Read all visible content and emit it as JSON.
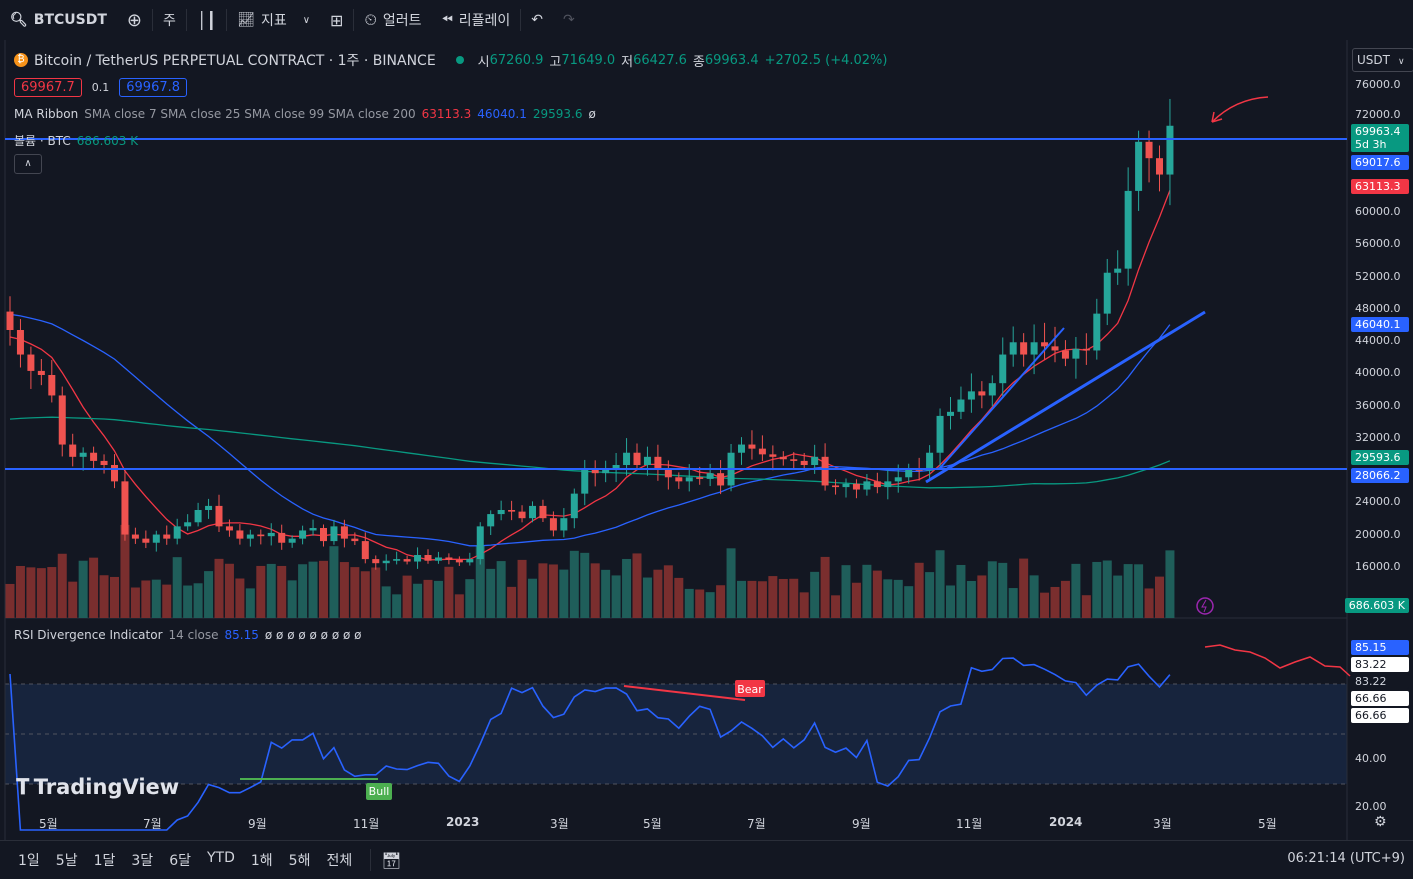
{
  "toolbar": {
    "symbol": "BTCUSDT",
    "interval": "주",
    "indicators": "지표",
    "alerts": "얼러트",
    "replay": "리플레이"
  },
  "header": {
    "title": "Bitcoin / TetherUS PERPETUAL CONTRACT · 1주 · BINANCE",
    "open_label": "시",
    "open": "67260.9",
    "high_label": "고",
    "high": "71649.0",
    "low_label": "저",
    "low": "66427.6",
    "close_label": "종",
    "close": "69963.4",
    "change": "+2702.5 (+4.02%)",
    "bid": "69967.7",
    "spread": "0.1",
    "ask": "69967.8",
    "currency": "USDT"
  },
  "ma_ribbon": {
    "name": "MA Ribbon",
    "params": "SMA close 7 SMA close 25 SMA close 99 SMA close 200",
    "v1": "63113.3",
    "v2": "46040.1",
    "v3": "29593.6",
    "v4": "ø"
  },
  "volume": {
    "name": "볼륨 · BTC",
    "value": "686.603 K"
  },
  "rsi": {
    "name": "RSI Divergence Indicator",
    "params": "14 close",
    "value": "85.15",
    "nulls": "ø ø ø ø ø ø ø ø ø",
    "bear_label": "Bear",
    "bull_label": "Bull"
  },
  "price_axis": [
    "76000.0",
    "72000.0",
    "60000.0",
    "56000.0",
    "52000.0",
    "48000.0",
    "44000.0",
    "40000.0",
    "36000.0",
    "32000.0",
    "24000.0",
    "20000.0",
    "16000.0"
  ],
  "price_tags": {
    "last": "69963.4",
    "countdown": "5d 3h",
    "line": "69017.6",
    "sma7": "63113.3",
    "sma25": "46040.1",
    "sma99": "29593.6",
    "hline": "28066.2",
    "vol": "686.603 K"
  },
  "rsi_axis": {
    "top": "85.15",
    "a": "83.22",
    "b": "83.22",
    "c": "66.66",
    "d": "66.66",
    "mid": "40.00",
    "low": "20.00"
  },
  "time_axis": [
    "5월",
    "7월",
    "9월",
    "11월",
    "2023",
    "3월",
    "5월",
    "7월",
    "9월",
    "11월",
    "2024",
    "3월",
    "5월"
  ],
  "ranges": [
    "1일",
    "5날",
    "1달",
    "3달",
    "6달",
    "YTD",
    "1해",
    "5해",
    "전체"
  ],
  "clock": "06:21:14 (UTC+9)",
  "watermark": "TradingView",
  "colors": {
    "up": "#26a69a",
    "down": "#ef5350",
    "sma7": "#f23645",
    "sma25": "#2962ff",
    "sma99": "#089981",
    "rsi": "#2962ff"
  },
  "chart_data": {
    "type": "candlestick",
    "interval": "1W",
    "ylim": [
      12000,
      78000
    ],
    "closes": [
      45000,
      42000,
      40000,
      39500,
      37000,
      31000,
      29500,
      30000,
      29000,
      28500,
      26500,
      20000,
      19500,
      19000,
      20000,
      19500,
      21000,
      21500,
      23000,
      23500,
      21000,
      20500,
      19500,
      20000,
      19800,
      20200,
      19000,
      19500,
      20500,
      20800,
      19200,
      21000,
      19500,
      19200,
      17000,
      16500,
      16800,
      17000,
      16700,
      17500,
      16800,
      17200,
      16900,
      16600,
      17000,
      21000,
      22500,
      23000,
      22800,
      22000,
      23500,
      22000,
      20500,
      22000,
      25000,
      28000,
      27500,
      28000,
      28500,
      30000,
      28500,
      29500,
      28000,
      27000,
      26500,
      27000,
      26800,
      27500,
      26000,
      30000,
      31000,
      30500,
      29800,
      29500,
      29200,
      29000,
      28500,
      29500,
      26000,
      25800,
      26200,
      25500,
      26500,
      25800,
      26500,
      27000,
      28000,
      27800,
      30000,
      34500,
      35000,
      36500,
      37500,
      37000,
      38500,
      42000,
      43500,
      42000,
      43500,
      43000,
      42500,
      41500,
      42700,
      42500,
      47000,
      52000,
      52500,
      62000,
      68000,
      66000,
      64000,
      69963
    ]
  }
}
